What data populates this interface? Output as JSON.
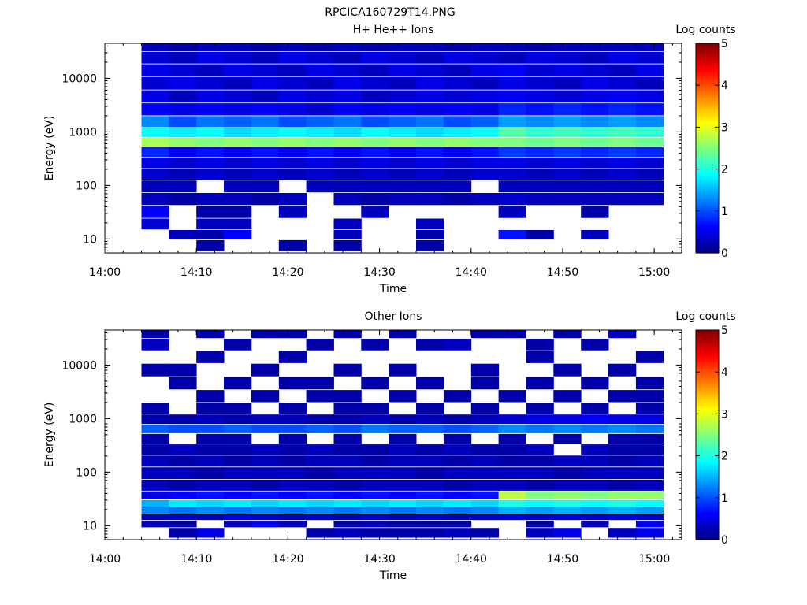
{
  "figure_title": "RPCICA160729T14.PNG",
  "chart_data": [
    {
      "type": "heatmap",
      "title": "H+ He++ Ions",
      "xlabel": "Time",
      "ylabel": "Energy (eV)",
      "colorbar_label": "Log counts",
      "colorbar_ticks": [
        "0",
        "1",
        "2",
        "3",
        "4",
        "5"
      ],
      "x_ticks": [
        "14:00",
        "14:10",
        "14:20",
        "14:30",
        "14:40",
        "14:50",
        "15:00"
      ],
      "y_ticks": [
        "10",
        "100",
        "1000",
        "10000"
      ],
      "y_scale": "log",
      "xlim": [
        "14:00",
        "15:03"
      ],
      "ylim": [
        5.5,
        45000
      ],
      "clim": [
        0,
        5
      ],
      "data_start": "14:04",
      "data_end": "15:01",
      "time_bins": 19,
      "energy_bins": [
        {
          "e": 40000,
          "v": [
            0.3,
            0.2,
            0.3,
            0.3,
            0.2,
            0.3,
            0.2,
            0.3,
            0.2,
            0.3,
            0.3,
            0.2,
            0.3,
            0.3,
            0.2,
            0.3,
            0.3,
            0.3,
            0.3
          ]
        },
        {
          "e": 24000,
          "v": [
            0.4,
            0.3,
            0.5,
            0.4,
            0.3,
            0.5,
            0.4,
            0.3,
            0.5,
            0.4,
            0.3,
            0.5,
            0.4,
            0.3,
            0.5,
            0.4,
            0.3,
            0.5,
            0.4
          ]
        },
        {
          "e": 14000,
          "v": [
            0.5,
            0.4,
            0.3,
            0.5,
            0.4,
            0.3,
            0.5,
            0.4,
            0.3,
            0.5,
            0.4,
            0.3,
            0.5,
            0.6,
            0.4,
            0.5,
            0.4,
            0.3,
            0.5
          ]
        },
        {
          "e": 8000,
          "v": [
            0.4,
            0.5,
            0.4,
            0.3,
            0.5,
            0.4,
            0.3,
            0.5,
            0.4,
            0.3,
            0.5,
            0.4,
            0.3,
            0.5,
            0.4,
            0.3,
            0.5,
            0.4,
            0.3
          ]
        },
        {
          "e": 4500,
          "v": [
            0.5,
            0.3,
            0.5,
            0.4,
            0.3,
            0.5,
            0.4,
            0.5,
            0.3,
            0.4,
            0.5,
            0.4,
            0.5,
            0.6,
            0.5,
            0.4,
            0.5,
            0.6,
            0.5
          ]
        },
        {
          "e": 2600,
          "v": [
            0.6,
            0.5,
            0.6,
            0.5,
            0.6,
            0.5,
            0.4,
            0.6,
            0.5,
            0.6,
            0.5,
            0.6,
            0.5,
            0.8,
            0.7,
            0.8,
            0.7,
            0.8,
            0.7
          ]
        },
        {
          "e": 1500,
          "v": [
            1.3,
            1.0,
            1.2,
            1.1,
            1.2,
            1.0,
            1.1,
            1.2,
            1.0,
            1.1,
            1.2,
            1.0,
            1.1,
            1.4,
            1.3,
            1.4,
            1.3,
            1.4,
            1.3
          ]
        },
        {
          "e": 950,
          "v": [
            1.9,
            1.8,
            1.9,
            1.7,
            1.8,
            1.9,
            1.8,
            1.7,
            1.9,
            1.8,
            1.7,
            1.8,
            1.9,
            2.3,
            2.1,
            2.2,
            2.1,
            2.2,
            2.1
          ]
        },
        {
          "e": 640,
          "v": [
            2.7,
            2.6,
            2.5,
            2.6,
            2.5,
            2.6,
            2.5,
            2.6,
            2.5,
            2.6,
            2.5,
            2.6,
            2.5,
            2.5,
            2.4,
            2.5,
            2.4,
            2.5,
            2.4
          ]
        },
        {
          "e": 420,
          "v": [
            0.8,
            0.6,
            0.7,
            0.6,
            0.7,
            0.6,
            0.7,
            0.6,
            0.7,
            0.6,
            0.7,
            0.6,
            0.7,
            0.9,
            0.8,
            0.9,
            0.8,
            0.9,
            0.8
          ]
        },
        {
          "e": 260,
          "v": [
            0.5,
            0.4,
            0.5,
            0.4,
            0.5,
            0.4,
            0.5,
            0.4,
            0.5,
            0.4,
            0.5,
            0.4,
            0.5,
            0.5,
            0.4,
            0.5,
            0.4,
            0.5,
            0.4
          ]
        },
        {
          "e": 160,
          "v": [
            0.4,
            0.3,
            0.4,
            0.3,
            0.4,
            0.3,
            0.4,
            0.3,
            0.4,
            0.3,
            0.4,
            0.3,
            0.4,
            0.4,
            0.3,
            0.4,
            0.3,
            0.4,
            0.3
          ]
        },
        {
          "e": 95,
          "v": [
            0.3,
            0.3,
            0.0,
            0.3,
            0.3,
            0.0,
            0.3,
            0.3,
            0.3,
            0.3,
            0.3,
            0.3,
            0.0,
            0.3,
            0.3,
            0.3,
            0.3,
            0.3,
            0.3
          ]
        },
        {
          "e": 55,
          "v": [
            0.3,
            0.2,
            0.3,
            0.3,
            0.2,
            0.3,
            0.0,
            0.3,
            0.2,
            0.3,
            0.3,
            0.2,
            0.3,
            0.4,
            0.3,
            0.3,
            0.3,
            0.3,
            0.3
          ]
        },
        {
          "e": 32,
          "v": [
            0.6,
            0.0,
            0.2,
            0.2,
            0.0,
            0.3,
            0.0,
            0.0,
            0.3,
            0.0,
            0.0,
            0.0,
            0.0,
            0.3,
            0.0,
            0.0,
            0.2,
            0.0,
            0.0
          ]
        },
        {
          "e": 18,
          "v": [
            0.4,
            0.0,
            0.3,
            0.3,
            0.0,
            0.0,
            0.0,
            0.3,
            0.0,
            0.0,
            0.3,
            0.0,
            0.0,
            0.0,
            0.0,
            0.0,
            0.0,
            0.0,
            0.0
          ]
        },
        {
          "e": 12,
          "v": [
            0.0,
            0.3,
            0.2,
            0.6,
            0.0,
            0.0,
            0.0,
            0.3,
            0.0,
            0.0,
            0.2,
            0.0,
            0.0,
            0.7,
            0.2,
            0.0,
            0.3,
            0.0,
            0.0
          ]
        },
        {
          "e": 7.5,
          "v": [
            0.0,
            0.0,
            0.2,
            0.0,
            0.0,
            0.2,
            0.0,
            0.2,
            0.0,
            0.0,
            0.2,
            0.0,
            0.0,
            0.0,
            0.0,
            0.0,
            0.0,
            0.0,
            0.0
          ]
        }
      ]
    },
    {
      "type": "heatmap",
      "title": "Other Ions",
      "xlabel": "Time",
      "ylabel": "Energy (eV)",
      "colorbar_label": "Log counts",
      "colorbar_ticks": [
        "0",
        "1",
        "2",
        "3",
        "4",
        "5"
      ],
      "x_ticks": [
        "14:00",
        "14:10",
        "14:20",
        "14:30",
        "14:40",
        "14:50",
        "15:00"
      ],
      "y_ticks": [
        "10",
        "100",
        "1000",
        "10000"
      ],
      "y_scale": "log",
      "xlim": [
        "14:00",
        "15:03"
      ],
      "ylim": [
        5.5,
        45000
      ],
      "clim": [
        0,
        5
      ],
      "data_start": "14:04",
      "data_end": "15:01",
      "time_bins": 19,
      "energy_bins": [
        {
          "e": 40000,
          "v": [
            0.2,
            0.0,
            0.2,
            0.0,
            0.2,
            0.2,
            0.0,
            0.2,
            0.0,
            0.2,
            0.0,
            0.0,
            0.2,
            0.2,
            0.0,
            0.2,
            0.0,
            0.3,
            0.0
          ]
        },
        {
          "e": 24000,
          "v": [
            0.3,
            0.0,
            0.0,
            0.2,
            0.0,
            0.0,
            0.2,
            0.0,
            0.2,
            0.0,
            0.2,
            0.3,
            0.0,
            0.0,
            0.2,
            0.0,
            0.2,
            0.0,
            0.0
          ]
        },
        {
          "e": 14000,
          "v": [
            0.0,
            0.0,
            0.2,
            0.0,
            0.0,
            0.2,
            0.0,
            0.0,
            0.0,
            0.0,
            0.0,
            0.0,
            0.0,
            0.0,
            0.2,
            0.0,
            0.0,
            0.0,
            0.2
          ]
        },
        {
          "e": 8000,
          "v": [
            0.2,
            0.2,
            0.0,
            0.0,
            0.2,
            0.0,
            0.0,
            0.2,
            0.0,
            0.2,
            0.0,
            0.0,
            0.2,
            0.0,
            0.0,
            0.2,
            0.0,
            0.2,
            0.0
          ]
        },
        {
          "e": 4500,
          "v": [
            0.0,
            0.2,
            0.0,
            0.2,
            0.0,
            0.2,
            0.2,
            0.0,
            0.2,
            0.0,
            0.2,
            0.0,
            0.2,
            0.0,
            0.2,
            0.0,
            0.2,
            0.0,
            0.2
          ]
        },
        {
          "e": 2600,
          "v": [
            0.0,
            0.0,
            0.2,
            0.0,
            0.2,
            0.0,
            0.2,
            0.2,
            0.0,
            0.2,
            0.0,
            0.2,
            0.0,
            0.2,
            0.0,
            0.2,
            0.0,
            0.2,
            0.2
          ]
        },
        {
          "e": 1500,
          "v": [
            0.2,
            0.0,
            0.2,
            0.2,
            0.0,
            0.2,
            0.0,
            0.2,
            0.2,
            0.0,
            0.2,
            0.0,
            0.2,
            0.0,
            0.2,
            0.0,
            0.2,
            0.0,
            0.2
          ]
        },
        {
          "e": 950,
          "v": [
            0.2,
            0.2,
            0.3,
            0.2,
            0.3,
            0.3,
            0.2,
            0.2,
            0.3,
            0.2,
            0.3,
            0.2,
            0.3,
            0.4,
            0.5,
            0.5,
            0.6,
            0.5,
            0.5
          ]
        },
        {
          "e": 640,
          "v": [
            1.1,
            1.0,
            1.0,
            1.1,
            1.0,
            1.0,
            1.1,
            1.0,
            1.2,
            1.1,
            1.1,
            1.0,
            1.1,
            1.3,
            1.2,
            1.3,
            1.2,
            1.3,
            1.2
          ]
        },
        {
          "e": 420,
          "v": [
            0.2,
            0.0,
            0.2,
            0.2,
            0.0,
            0.2,
            0.0,
            0.2,
            0.0,
            0.2,
            0.0,
            0.2,
            0.0,
            0.2,
            0.0,
            0.2,
            0.0,
            0.2,
            0.2
          ]
        },
        {
          "e": 260,
          "v": [
            0.2,
            0.3,
            0.2,
            0.2,
            0.3,
            0.2,
            0.3,
            0.2,
            0.2,
            0.3,
            0.2,
            0.3,
            0.2,
            0.2,
            0.3,
            0.0,
            0.3,
            0.2,
            0.2
          ]
        },
        {
          "e": 160,
          "v": [
            0.3,
            0.2,
            0.3,
            0.2,
            0.3,
            0.2,
            0.3,
            0.3,
            0.2,
            0.3,
            0.3,
            0.2,
            0.3,
            0.2,
            0.2,
            0.3,
            0.3,
            0.2,
            0.3
          ]
        },
        {
          "e": 95,
          "v": [
            0.3,
            0.3,
            0.2,
            0.3,
            0.3,
            0.3,
            0.2,
            0.3,
            0.3,
            0.3,
            0.2,
            0.3,
            0.3,
            0.3,
            0.3,
            0.2,
            0.3,
            0.3,
            0.3
          ]
        },
        {
          "e": 55,
          "v": [
            0.3,
            0.2,
            0.3,
            0.3,
            0.2,
            0.3,
            0.3,
            0.2,
            0.3,
            0.3,
            0.3,
            0.2,
            0.3,
            0.3,
            0.2,
            0.3,
            0.3,
            0.2,
            0.3
          ]
        },
        {
          "e": 35,
          "v": [
            0.5,
            0.6,
            0.7,
            0.6,
            0.7,
            0.6,
            0.7,
            0.6,
            0.7,
            0.6,
            0.7,
            0.6,
            0.7,
            2.8,
            2.5,
            2.6,
            2.5,
            2.6,
            2.6
          ]
        },
        {
          "e": 26,
          "v": [
            1.5,
            1.8,
            1.7,
            1.8,
            1.7,
            1.8,
            1.7,
            1.8,
            1.7,
            1.8,
            1.7,
            1.8,
            1.7,
            2.0,
            1.9,
            2.0,
            1.9,
            2.0,
            1.9
          ]
        },
        {
          "e": 19,
          "v": [
            1.3,
            1.2,
            1.3,
            1.2,
            1.3,
            1.2,
            1.3,
            1.2,
            1.3,
            1.2,
            1.3,
            1.2,
            1.3,
            1.5,
            1.4,
            1.5,
            1.4,
            1.5,
            1.4
          ]
        },
        {
          "e": 14,
          "v": [
            0.3,
            0.4,
            0.3,
            0.5,
            0.4,
            0.3,
            0.4,
            0.3,
            0.4,
            0.3,
            0.4,
            0.3,
            0.4,
            0.5,
            0.4,
            0.5,
            0.4,
            0.5,
            0.4
          ]
        },
        {
          "e": 11,
          "v": [
            0.3,
            0.2,
            0.0,
            0.3,
            0.6,
            0.3,
            0.0,
            0.2,
            0.3,
            0.2,
            0.2,
            0.2,
            0.0,
            0.0,
            0.2,
            0.0,
            0.3,
            0.0,
            0.6
          ]
        },
        {
          "e": 7.5,
          "v": [
            0.0,
            0.2,
            0.5,
            0.0,
            0.0,
            0.0,
            0.2,
            0.3,
            0.2,
            0.2,
            0.2,
            0.3,
            0.2,
            0.0,
            0.3,
            0.5,
            0.0,
            0.3,
            0.5
          ]
        }
      ]
    }
  ]
}
